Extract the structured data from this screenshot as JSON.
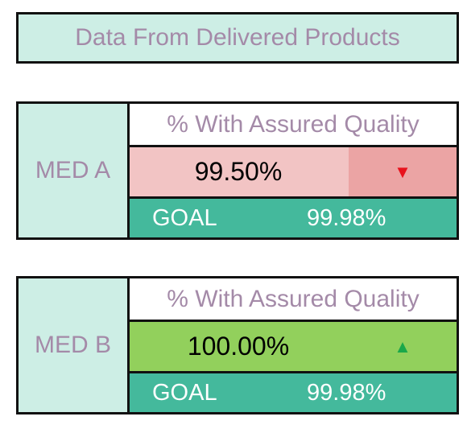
{
  "title": "Data From Delivered Products",
  "cards": [
    {
      "name": "MED A",
      "metric_label": "% With Assured Quality",
      "value": "99.50%",
      "trend": "down",
      "trend_symbol": "▼",
      "status_color": "#f2c4c4",
      "goal_label": "GOAL",
      "goal_value": "99.98%"
    },
    {
      "name": "MED B",
      "metric_label": "% With Assured Quality",
      "value": "100.00%",
      "trend": "up",
      "trend_symbol": "▲",
      "status_color": "#92d05c",
      "goal_label": "GOAL",
      "goal_value": "99.98%"
    }
  ],
  "colors": {
    "label_bg": "#cdeee5",
    "label_text": "#a48aa8",
    "goal_bg": "#44b99c",
    "down_arrow": "#e8121c",
    "up_arrow": "#1aa84a"
  }
}
